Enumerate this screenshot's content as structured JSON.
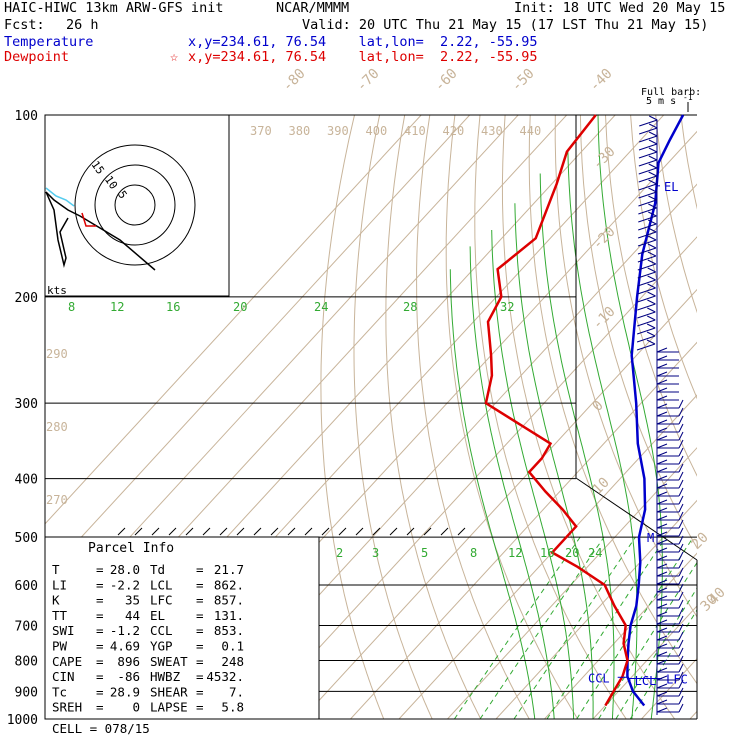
{
  "header": {
    "model": "HAIC-HIWC 13km ARW-GFS init",
    "org": "NCAR/MMMM",
    "init": "Init: 18 UTC Wed 20 May 15",
    "fcst_label": "Fcst:",
    "fcst_value": "26 h",
    "valid": "Valid: 20 UTC Thu 21 May 15 (17 LST Thu 21 May 15)",
    "temperature_label": "Temperature",
    "temperature_loc": "x,y=234.61, 76.54    lat,lon=  2.22, -55.95",
    "dewpoint_label": "Dewpoint",
    "dewpoint_marker": "☆",
    "dewpoint_loc": "x,y=234.61, 76.54    lat,lon=  2.22, -55.95"
  },
  "colors": {
    "temperature": "#0000cc",
    "dewpoint": "#dd0000",
    "dry_adiabat": "#c8b49a",
    "moist_adiabat": "#33aa33",
    "isotherm": "#c8b49a",
    "isobar": "#000000",
    "wind_barb": "#000080",
    "hodograph_trace": "#000000",
    "hodograph_low": "#55ccee"
  },
  "chart_data": {
    "type": "skew-t",
    "pressure_ticks": [
      100,
      200,
      300,
      400,
      500,
      600,
      700,
      800,
      900,
      1000
    ],
    "isotherm_labels": [
      "-80",
      "-70",
      "-60",
      "-50",
      "-40",
      "-30",
      "-20",
      "-10",
      "0",
      "10",
      "20",
      "30",
      "40"
    ],
    "theta_labels": [
      "370",
      "380",
      "390",
      "400",
      "410",
      "420",
      "430",
      "440"
    ],
    "theta_side_labels": [
      "290",
      "280",
      "270"
    ],
    "mixing_ratio_top": [
      "8",
      "12",
      "16",
      "20",
      "24",
      "28",
      "32"
    ],
    "mixing_ratio_mid": [
      "2",
      "3",
      "5",
      "8",
      "12",
      "16",
      "20",
      "24"
    ],
    "temperature_profile": [
      {
        "p": 100,
        "t": -76
      },
      {
        "p": 110,
        "t": -74
      },
      {
        "p": 120,
        "t": -72
      },
      {
        "p": 140,
        "t": -65
      },
      {
        "p": 170,
        "t": -58
      },
      {
        "p": 200,
        "t": -51
      },
      {
        "p": 250,
        "t": -41
      },
      {
        "p": 300,
        "t": -31
      },
      {
        "p": 350,
        "t": -23
      },
      {
        "p": 400,
        "t": -15
      },
      {
        "p": 450,
        "t": -9
      },
      {
        "p": 500,
        "t": -5
      },
      {
        "p": 550,
        "t": 0
      },
      {
        "p": 600,
        "t": 4
      },
      {
        "p": 650,
        "t": 7.5
      },
      {
        "p": 700,
        "t": 10
      },
      {
        "p": 750,
        "t": 13
      },
      {
        "p": 800,
        "t": 16
      },
      {
        "p": 850,
        "t": 19
      },
      {
        "p": 900,
        "t": 23
      },
      {
        "p": 950,
        "t": 28
      }
    ],
    "dewpoint_profile": [
      {
        "p": 100,
        "t": -94
      },
      {
        "p": 115,
        "t": -93
      },
      {
        "p": 130,
        "t": -89
      },
      {
        "p": 160,
        "t": -83
      },
      {
        "p": 180,
        "t": -85
      },
      {
        "p": 200,
        "t": -79
      },
      {
        "p": 220,
        "t": -77
      },
      {
        "p": 250,
        "t": -70
      },
      {
        "p": 270,
        "t": -66
      },
      {
        "p": 300,
        "t": -62
      },
      {
        "p": 330,
        "t": -49
      },
      {
        "p": 350,
        "t": -41
      },
      {
        "p": 370,
        "t": -40
      },
      {
        "p": 390,
        "t": -40
      },
      {
        "p": 420,
        "t": -33
      },
      {
        "p": 450,
        "t": -26
      },
      {
        "p": 480,
        "t": -20
      },
      {
        "p": 500,
        "t": -20
      },
      {
        "p": 530,
        "t": -20
      },
      {
        "p": 560,
        "t": -12
      },
      {
        "p": 600,
        "t": -3
      },
      {
        "p": 650,
        "t": 3
      },
      {
        "p": 700,
        "t": 9
      },
      {
        "p": 750,
        "t": 12
      },
      {
        "p": 800,
        "t": 16
      },
      {
        "p": 850,
        "t": 18
      },
      {
        "p": 900,
        "t": 19
      },
      {
        "p": 950,
        "t": 20
      }
    ],
    "levels_marked": [
      {
        "label": "EL",
        "p": 131
      },
      {
        "label": "M",
        "p": 500
      },
      {
        "label": "CCL",
        "p": 853
      },
      {
        "label": "LCL",
        "p": 862
      },
      {
        "label": "LFC",
        "p": 857
      }
    ],
    "hodograph_rings": [
      "5",
      "10",
      "15"
    ],
    "hodograph_units": "kts",
    "barb_legend": {
      "title": "Full barb:",
      "value": "5 m s",
      "sup": "-1"
    }
  },
  "parcel": {
    "title": "Parcel Info",
    "rows": [
      {
        "k1": "T",
        "v1": "28.0",
        "k2": "Td",
        "v2": "21.7"
      },
      {
        "k1": "LI",
        "v1": "-2.2",
        "k2": "LCL",
        "v2": "862."
      },
      {
        "k1": "K",
        "v1": "35",
        "k2": "LFC",
        "v2": "857."
      },
      {
        "k1": "TT",
        "v1": "44",
        "k2": "EL",
        "v2": "131."
      },
      {
        "k1": "SWI",
        "v1": "-1.2",
        "k2": "CCL",
        "v2": "853."
      },
      {
        "k1": "PW",
        "v1": "4.69",
        "k2": "YGP",
        "v2": "0.1"
      },
      {
        "k1": "CAPE",
        "v1": "896",
        "k2": "SWEAT",
        "v2": "248"
      },
      {
        "k1": "CIN",
        "v1": "-86",
        "k2": "HWBZ",
        "v2": "4532."
      },
      {
        "k1": "Tc",
        "v1": "28.9",
        "k2": "SHEAR",
        "v2": "7."
      },
      {
        "k1": "SREH",
        "v1": "0",
        "k2": "LAPSE",
        "v2": "5.8"
      }
    ],
    "cell_label": "CELL =",
    "cell_value": "078/15"
  }
}
